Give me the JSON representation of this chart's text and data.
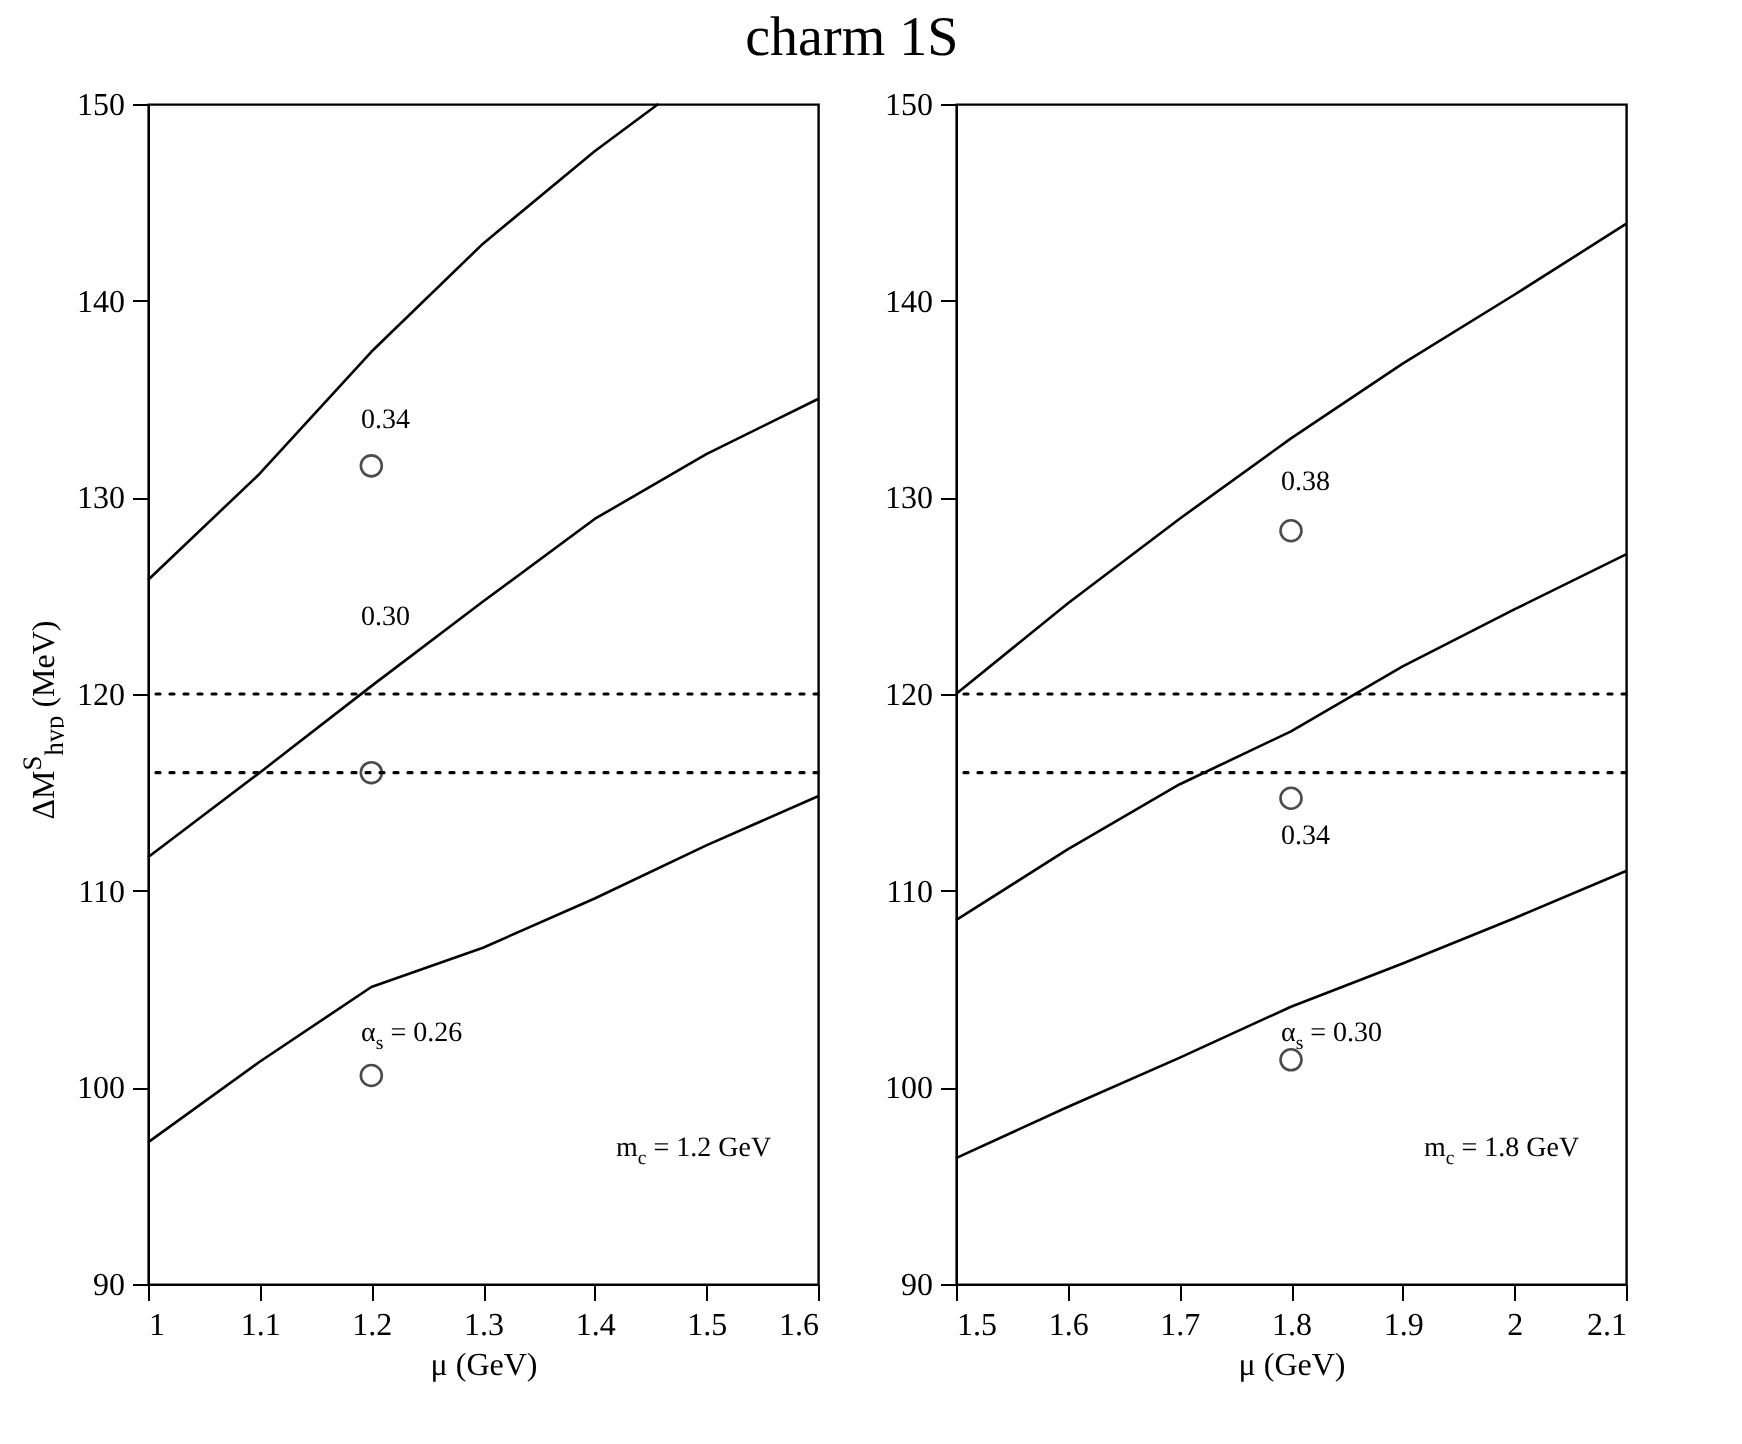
{
  "chart_data": [
    {
      "type": "line",
      "title": "charm 1S",
      "xlabel": "μ (GeV)",
      "ylabel": "ΔM$^{S}$$_{hyp}$ (MeV)",
      "xlim": [
        1,
        1.6
      ],
      "ylim": [
        90,
        150
      ],
      "xticks": [
        1,
        1.1,
        1.2,
        1.3,
        1.4,
        1.5,
        1.6
      ],
      "yticks": [
        90,
        100,
        110,
        120,
        130,
        140,
        150
      ],
      "grid": false,
      "line_style": "solid",
      "series": [
        {
          "color": "#000000",
          "x": [
            1,
            1.1,
            1.2,
            1.3,
            1.4,
            1.457
          ],
          "values": [
            125.8,
            131.2,
            137.4,
            142.9,
            147.6,
            150
          ]
        },
        {
          "color": "#000000",
          "x": [
            1,
            1.1,
            1.2,
            1.3,
            1.4,
            1.5,
            1.6
          ],
          "values": [
            111.7,
            116.0,
            120.4,
            124.7,
            128.9,
            132.2,
            135.0
          ]
        },
        {
          "color": "#000000",
          "x": [
            1,
            1.1,
            1.2,
            1.3,
            1.4,
            1.5,
            1.6
          ],
          "values": [
            97.2,
            101.3,
            105.1,
            107.1,
            109.6,
            112.3,
            114.8
          ]
        },
        {
          "type": "scatter",
          "marker": "circle",
          "color": "#000000",
          "x": [
            1.2,
            1.2,
            1.2
          ],
          "values": [
            131.6,
            116.0,
            100.6
          ]
        }
      ],
      "ref_lines": [
        {
          "axis": "y",
          "value": 120,
          "line_style": "dotted"
        },
        {
          "axis": "y",
          "value": 116,
          "line_style": "dotted"
        }
      ],
      "annotations": [
        "0.34",
        "0.30",
        "α$_{s}$ = 0.26",
        "m$_{c}$ = 1.2 GeV"
      ]
    },
    {
      "type": "line",
      "xlabel": "μ (GeV)",
      "xlim": [
        1.5,
        2.1
      ],
      "ylim": [
        90,
        150
      ],
      "xticks": [
        1.5,
        1.6,
        1.7,
        1.8,
        1.9,
        2,
        2.1
      ],
      "yticks": [
        90,
        100,
        110,
        120,
        130,
        140,
        150
      ],
      "grid": false,
      "line_style": "solid",
      "series": [
        {
          "color": "#000000",
          "x": [
            1.5,
            1.6,
            1.7,
            1.8,
            1.9,
            2,
            2.1
          ],
          "values": [
            120.0,
            124.6,
            128.9,
            133.0,
            136.8,
            140.3,
            143.9
          ]
        },
        {
          "color": "#000000",
          "x": [
            1.5,
            1.6,
            1.7,
            1.8,
            1.9,
            2,
            2.1
          ],
          "values": [
            108.5,
            112.1,
            115.4,
            118.1,
            121.4,
            124.3,
            127.1
          ]
        },
        {
          "color": "#000000",
          "x": [
            1.5,
            1.6,
            1.7,
            1.8,
            1.9,
            2,
            2.1
          ],
          "values": [
            96.4,
            99.0,
            101.5,
            104.1,
            106.3,
            108.6,
            111.0
          ]
        },
        {
          "type": "scatter",
          "marker": "circle",
          "color": "#000000",
          "x": [
            1.8,
            1.8,
            1.8
          ],
          "values": [
            128.3,
            114.7,
            101.4
          ]
        }
      ],
      "ref_lines": [
        {
          "axis": "y",
          "value": 120,
          "line_style": "dotted"
        },
        {
          "axis": "y",
          "value": 116,
          "line_style": "dotted"
        }
      ],
      "annotations": [
        "0.38",
        "0.34",
        "α$_{s}$ = 0.30",
        "m$_{c}$ = 1.8 GeV"
      ]
    }
  ]
}
